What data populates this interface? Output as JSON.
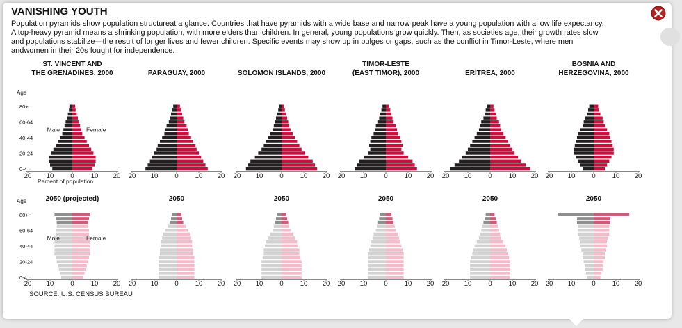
{
  "header": {
    "title": "VANISHING YOUTH",
    "intro": "Population pyramids show population structureat a glance. Countries that have pyramids with a wide base and narrow peak have a young population with a low life expectancy. A top-heavy pyramid means a shrinking population, with more elders than children. In general, young populations grow quickly. Then, as societies age, their growth rates slow and populations stabilize—the result of longer lives and fewer children. Specific events may show up in bulges or gaps, such as the conflict in Timor-Leste, where men andwomen in their 20s fought for independence.",
    "close_label": "close"
  },
  "source": "SOURCE: U.S. CENSUS BUREAU",
  "colors": {
    "male_2000": "#231f20",
    "female_2000": "#c8103e",
    "male_2050": "#d2d2d2",
    "female_2050": "#f2bccb",
    "male_2050_old": "#8f8f8f",
    "female_2050_old": "#cf5a79",
    "close": "#b22222"
  },
  "chart_data": [
    {
      "type": "pyramid",
      "title_lines": [
        "ST. VINCENT AND",
        "THE GRENADINES, 2000"
      ],
      "xlabel": "Percent of population",
      "ylabel": "Age",
      "ytick_labels": [
        "0-4",
        "20-24",
        "40-44",
        "60-64",
        "80+"
      ],
      "xtick_labels": [
        "20",
        "10",
        "0",
        "10",
        "20"
      ],
      "xlim": [
        -20,
        20
      ],
      "male_label": "Male",
      "female_label": "Female",
      "age_groups": 17,
      "male": [
        9,
        10,
        10.5,
        10.5,
        9.5,
        8.5,
        7.5,
        6.5,
        5.5,
        4.5,
        4,
        3.5,
        3,
        2.5,
        2,
        1.5,
        1.3
      ],
      "female": [
        9,
        10,
        10.5,
        10.5,
        9.5,
        8.5,
        7.5,
        6.5,
        5.5,
        4.5,
        4,
        3.5,
        3,
        2.5,
        2,
        1.5,
        1.3
      ]
    },
    {
      "type": "pyramid",
      "title_lines": [
        "PARAGUAY, 2000"
      ],
      "xtick_labels": [
        "20",
        "10",
        "0",
        "10",
        "20"
      ],
      "xlim": [
        -20,
        20
      ],
      "age_groups": 17,
      "male": [
        14,
        13,
        12,
        11,
        10,
        9,
        8.5,
        7.5,
        6.5,
        5.5,
        5,
        4.5,
        3.5,
        3,
        2.5,
        2,
        1.5
      ],
      "female": [
        14,
        13,
        12,
        11,
        10,
        9,
        8.5,
        7.5,
        6.5,
        5.5,
        5,
        4.5,
        3.5,
        3,
        2.5,
        2,
        1.5
      ]
    },
    {
      "type": "pyramid",
      "title_lines": [
        "SOLOMON ISLANDS, 2000"
      ],
      "xtick_labels": [
        "20",
        "10",
        "0",
        "10",
        "20"
      ],
      "xlim": [
        -20,
        20
      ],
      "age_groups": 17,
      "male": [
        16,
        15,
        14,
        12,
        10.5,
        9,
        8,
        7,
        6,
        5,
        4,
        3.5,
        3,
        2.5,
        2,
        1.5,
        1
      ],
      "female": [
        16,
        15,
        14,
        12,
        10.5,
        9,
        8,
        7,
        6,
        5,
        4,
        3.5,
        3,
        2.5,
        2,
        1.5,
        1
      ]
    },
    {
      "type": "pyramid",
      "title_lines": [
        "TIMOR-LESTE",
        "(EAST TIMOR), 2000"
      ],
      "xtick_labels": [
        "20",
        "10",
        "0",
        "10",
        "20"
      ],
      "xlim": [
        -20,
        20
      ],
      "age_groups": 17,
      "male": [
        14,
        13,
        12,
        10,
        8,
        7,
        7.5,
        7,
        6.5,
        5.5,
        5,
        4.5,
        3.5,
        3,
        2.5,
        2,
        1.5
      ],
      "female": [
        14,
        13,
        12,
        10,
        8,
        7,
        7.5,
        7,
        6.5,
        5.5,
        5,
        4.5,
        3.5,
        3,
        2.5,
        2,
        1.5
      ]
    },
    {
      "type": "pyramid",
      "title_lines": [
        "ERITREA, 2000"
      ],
      "xtick_labels": [
        "20",
        "10",
        "0",
        "10",
        "20"
      ],
      "xlim": [
        -20,
        20
      ],
      "age_groups": 17,
      "male": [
        18,
        16,
        14,
        12.5,
        11,
        10,
        9,
        8,
        7,
        6,
        5,
        4.5,
        4,
        3,
        2.5,
        2,
        1.5
      ],
      "female": [
        18,
        16,
        14,
        12.5,
        11,
        10,
        9,
        8,
        7,
        6,
        5,
        4.5,
        4,
        3,
        2.5,
        2,
        1.5
      ]
    },
    {
      "type": "pyramid",
      "title_lines": [
        "BOSNIA AND",
        "HERZEGOVINA, 2000"
      ],
      "xtick_labels": [
        "20",
        "10",
        "0",
        "10",
        "20"
      ],
      "xlim": [
        -20,
        20
      ],
      "age_groups": 17,
      "male": [
        5,
        6,
        7,
        8,
        9,
        9,
        8.5,
        8,
        7.5,
        7,
        6,
        5,
        4.5,
        4,
        3,
        2.5,
        2
      ],
      "female": [
        5,
        6,
        7,
        8,
        9,
        9,
        8.5,
        8,
        7.5,
        7,
        6,
        5,
        4.5,
        4,
        3,
        2.5,
        2
      ]
    },
    {
      "type": "pyramid",
      "title_lines": [
        "2050 (projected)"
      ],
      "xlabel": "",
      "ylabel": "Age",
      "ytick_labels": [
        "0-4",
        "20-24",
        "40-44",
        "60-64",
        "80+"
      ],
      "xtick_labels": [
        "20",
        "10",
        "0",
        "10",
        "20"
      ],
      "xlim": [
        -20,
        20
      ],
      "male_label": "Male",
      "female_label": "Female",
      "age_groups": 17,
      "male": [
        5,
        5.5,
        6,
        6.5,
        7,
        7.5,
        8,
        8,
        8,
        8,
        8,
        7.5,
        7.5,
        7,
        7,
        7.5,
        8
      ],
      "female": [
        5,
        5.5,
        6,
        6.5,
        7,
        7.5,
        8,
        8,
        8,
        8,
        8,
        7.5,
        7.5,
        7,
        7,
        7.5,
        8
      ]
    },
    {
      "type": "pyramid",
      "title_lines": [
        "2050"
      ],
      "xtick_labels": [
        "20",
        "10",
        "0",
        "10",
        "20"
      ],
      "xlim": [
        -20,
        20
      ],
      "age_groups": 17,
      "male": [
        8,
        8,
        8,
        8,
        8,
        8,
        7.5,
        7.5,
        7,
        7,
        6.5,
        6,
        5,
        4,
        3,
        2.5,
        2
      ],
      "female": [
        8,
        8,
        8,
        8,
        8,
        8,
        7.5,
        7.5,
        7,
        7,
        6.5,
        6,
        5,
        4,
        3,
        2.5,
        2
      ]
    },
    {
      "type": "pyramid",
      "title_lines": [
        "2050"
      ],
      "xtick_labels": [
        "20",
        "10",
        "0",
        "10",
        "20"
      ],
      "xlim": [
        -20,
        20
      ],
      "age_groups": 17,
      "male": [
        9,
        9,
        9,
        9,
        9,
        8.5,
        8,
        8,
        7.5,
        7,
        6,
        5,
        4,
        3.5,
        3,
        2.5,
        2
      ],
      "female": [
        9,
        9,
        9,
        9,
        9,
        8.5,
        8,
        8,
        7.5,
        7,
        6,
        5,
        4,
        3.5,
        3,
        2.5,
        2
      ]
    },
    {
      "type": "pyramid",
      "title_lines": [
        "2050"
      ],
      "xtick_labels": [
        "20",
        "10",
        "0",
        "10",
        "20"
      ],
      "xlim": [
        -20,
        20
      ],
      "age_groups": 17,
      "male": [
        8,
        8,
        8,
        8,
        8,
        8,
        8,
        7.5,
        7,
        6.5,
        6,
        5.5,
        4.5,
        4,
        3.5,
        3,
        2.5
      ],
      "female": [
        8,
        8,
        8,
        8,
        8,
        8,
        8,
        7.5,
        7,
        6.5,
        6,
        5.5,
        4.5,
        4,
        3.5,
        3,
        2.5
      ]
    },
    {
      "type": "pyramid",
      "title_lines": [
        "2050"
      ],
      "xtick_labels": [
        "20",
        "10",
        "0",
        "10",
        "20"
      ],
      "xlim": [
        -20,
        20
      ],
      "age_groups": 17,
      "male": [
        9,
        9,
        9,
        9,
        9,
        8.5,
        8,
        7.5,
        7,
        6,
        5,
        4.5,
        4,
        3.5,
        3,
        2.5,
        2
      ],
      "female": [
        9,
        9,
        9,
        9,
        9,
        8.5,
        8,
        7.5,
        7,
        6,
        5,
        4.5,
        4,
        3.5,
        3,
        2.5,
        2
      ]
    },
    {
      "type": "pyramid",
      "title_lines": [
        "2050"
      ],
      "xtick_labels": [
        "20",
        "10",
        "0",
        "10",
        "20"
      ],
      "xlim": [
        -20,
        20
      ],
      "age_groups": 17,
      "male": [
        3,
        3.5,
        4,
        4,
        4.5,
        5,
        5,
        5.5,
        6,
        6,
        6.5,
        7,
        7,
        7,
        7.5,
        7.5,
        16
      ],
      "female": [
        3,
        3.5,
        4,
        4,
        4.5,
        5,
        5,
        5.5,
        6,
        6,
        6.5,
        7,
        7,
        7,
        7.5,
        7.5,
        16
      ]
    }
  ]
}
